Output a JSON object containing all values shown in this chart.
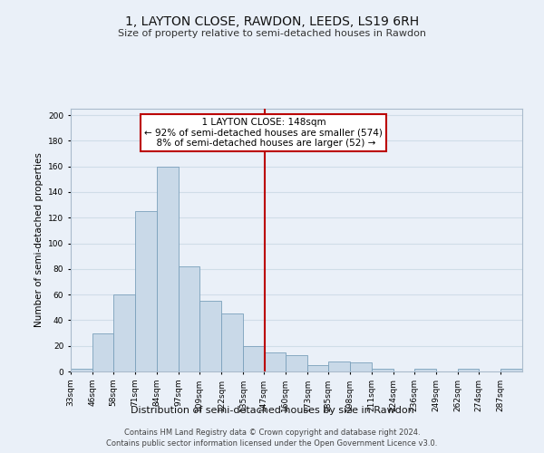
{
  "title": "1, LAYTON CLOSE, RAWDON, LEEDS, LS19 6RH",
  "subtitle": "Size of property relative to semi-detached houses in Rawdon",
  "xlabel": "Distribution of semi-detached houses by size in Rawdon",
  "ylabel": "Number of semi-detached properties",
  "footnote1": "Contains HM Land Registry data © Crown copyright and database right 2024.",
  "footnote2": "Contains public sector information licensed under the Open Government Licence v3.0.",
  "property_label": "1 LAYTON CLOSE: 148sqm",
  "pct_smaller": 92,
  "count_smaller": 574,
  "pct_larger": 8,
  "count_larger": 52,
  "bin_labels": [
    "33sqm",
    "46sqm",
    "58sqm",
    "71sqm",
    "84sqm",
    "97sqm",
    "109sqm",
    "122sqm",
    "135sqm",
    "147sqm",
    "160sqm",
    "173sqm",
    "185sqm",
    "198sqm",
    "211sqm",
    "224sqm",
    "236sqm",
    "249sqm",
    "262sqm",
    "274sqm",
    "287sqm"
  ],
  "bin_edges": [
    33,
    46,
    58,
    71,
    84,
    97,
    109,
    122,
    135,
    147,
    160,
    173,
    185,
    198,
    211,
    224,
    236,
    249,
    262,
    274,
    287,
    300
  ],
  "bar_values": [
    2,
    30,
    60,
    125,
    160,
    82,
    55,
    45,
    20,
    15,
    13,
    5,
    8,
    7,
    2,
    0,
    2,
    0,
    2,
    0,
    2
  ],
  "bar_color": "#c9d9e8",
  "bar_edge_color": "#7aa0bb",
  "vline_color": "#bb0000",
  "vline_x": 148,
  "box_facecolor": "#ffffff",
  "box_edgecolor": "#bb0000",
  "grid_color": "#d0dde8",
  "bg_color": "#eaf0f8",
  "ylim": [
    0,
    205
  ],
  "yticks": [
    0,
    20,
    40,
    60,
    80,
    100,
    120,
    140,
    160,
    180,
    200
  ]
}
